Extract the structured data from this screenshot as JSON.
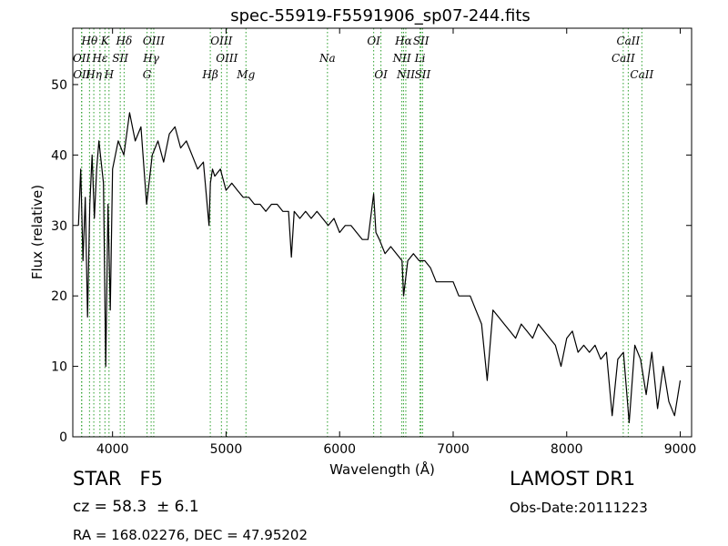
{
  "chart_data": {
    "type": "line",
    "title": "spec-55919-F5591906_sp07-244.fits",
    "xlabel": "Wavelength (Å)",
    "ylabel": "Flux (relative)",
    "xlim": [
      3650,
      9100
    ],
    "ylim": [
      0,
      58
    ],
    "xticks": [
      4000,
      5000,
      6000,
      7000,
      8000,
      9000
    ],
    "yticks": [
      0,
      10,
      20,
      30,
      40,
      50
    ],
    "grid": false,
    "line_color": "#000000",
    "marker_line_color": "#2ca02c",
    "series": [
      {
        "x": [
          3700,
          3720,
          3740,
          3760,
          3780,
          3800,
          3820,
          3840,
          3860,
          3880,
          3900,
          3920,
          3940,
          3960,
          3980,
          4000,
          4050,
          4100,
          4150,
          4200,
          4250,
          4300,
          4350,
          4400,
          4450,
          4500,
          4550,
          4600,
          4650,
          4700,
          4750,
          4800,
          4850,
          4862,
          4880,
          4900,
          4950,
          5000,
          5050,
          5100,
          5150,
          5200,
          5250,
          5300,
          5350,
          5400,
          5450,
          5500,
          5550,
          5575,
          5600,
          5650,
          5700,
          5750,
          5800,
          5850,
          5900,
          5950,
          6000,
          6050,
          6100,
          6150,
          6200,
          6250,
          6300,
          6320,
          6350,
          6400,
          6450,
          6500,
          6550,
          6563,
          6600,
          6650,
          6700,
          6750,
          6800,
          6850,
          6900,
          6950,
          7000,
          7050,
          7100,
          7150,
          7200,
          7250,
          7300,
          7350,
          7400,
          7450,
          7500,
          7550,
          7600,
          7650,
          7700,
          7750,
          7800,
          7850,
          7900,
          7950,
          8000,
          8050,
          8100,
          8150,
          8200,
          8250,
          8300,
          8350,
          8400,
          8450,
          8500,
          8550,
          8600,
          8650,
          8700,
          8750,
          8800,
          8850,
          8900,
          8950,
          9000
        ],
        "y": [
          30,
          38,
          25,
          34,
          17,
          33,
          40,
          31,
          38,
          42,
          39,
          36,
          10,
          33,
          18,
          38,
          42,
          40,
          46,
          42,
          44,
          33,
          40,
          42,
          39,
          43,
          44,
          41,
          42,
          40,
          38,
          39,
          30,
          36,
          38,
          37,
          38,
          35,
          36,
          35,
          34,
          34,
          33,
          33,
          32,
          33,
          33,
          32,
          32,
          25.5,
          32,
          31,
          32,
          31,
          32,
          31,
          30,
          31,
          29,
          30,
          30,
          29,
          28,
          28,
          34.5,
          29,
          28,
          26,
          27,
          26,
          25,
          20,
          25,
          26,
          25,
          25,
          24,
          22,
          22,
          22,
          22,
          20,
          20,
          20,
          18,
          16,
          8,
          18,
          17,
          16,
          15,
          14,
          16,
          15,
          14,
          16,
          15,
          14,
          13,
          10,
          14,
          15,
          12,
          13,
          12,
          13,
          11,
          12,
          3,
          11,
          12,
          2,
          13,
          11,
          6,
          12,
          4,
          10,
          5,
          3,
          8
        ]
      }
    ],
    "line_labels": [
      {
        "text": "Hθ",
        "x": 3797,
        "row": 1
      },
      {
        "text": "K",
        "x": 3933,
        "row": 1
      },
      {
        "text": "Hδ",
        "x": 4102,
        "row": 1
      },
      {
        "text": "OIII",
        "x": 4363,
        "row": 1
      },
      {
        "text": "OIII",
        "x": 4959,
        "row": 1
      },
      {
        "text": "OI",
        "x": 6300,
        "row": 1
      },
      {
        "text": "Hα",
        "x": 6563,
        "row": 1
      },
      {
        "text": "SII",
        "x": 6717,
        "row": 1
      },
      {
        "text": "CaII",
        "x": 8542,
        "row": 1
      },
      {
        "text": "OII",
        "x": 3727,
        "row": 2
      },
      {
        "text": "Hε",
        "x": 3889,
        "row": 2
      },
      {
        "text": "SII",
        "x": 4068,
        "row": 2
      },
      {
        "text": "Hγ",
        "x": 4340,
        "row": 2
      },
      {
        "text": "OIII",
        "x": 5007,
        "row": 2
      },
      {
        "text": "Na",
        "x": 5893,
        "row": 2
      },
      {
        "text": "NII",
        "x": 6548,
        "row": 2
      },
      {
        "text": "Li",
        "x": 6708,
        "row": 2
      },
      {
        "text": "CaII",
        "x": 8498,
        "row": 2
      },
      {
        "text": "OII",
        "x": 3729,
        "row": 3
      },
      {
        "text": "Hη",
        "x": 3835,
        "row": 3
      },
      {
        "text": "H",
        "x": 3969,
        "row": 3
      },
      {
        "text": "G",
        "x": 4304,
        "row": 3
      },
      {
        "text": "Hβ",
        "x": 4861,
        "row": 3
      },
      {
        "text": "Mg",
        "x": 5175,
        "row": 3
      },
      {
        "text": "OI",
        "x": 6364,
        "row": 3
      },
      {
        "text": "NII",
        "x": 6583,
        "row": 3
      },
      {
        "text": "SII",
        "x": 6731,
        "row": 3
      },
      {
        "text": "CaII",
        "x": 8662,
        "row": 3
      }
    ]
  },
  "info": {
    "object_type": "STAR   F5",
    "cz": "cz = 58.3  ± 6.1",
    "coords": "RA = 168.02276, DEC = 47.95202",
    "survey": "LAMOST DR1",
    "obs_date": "Obs-Date:20111223"
  }
}
